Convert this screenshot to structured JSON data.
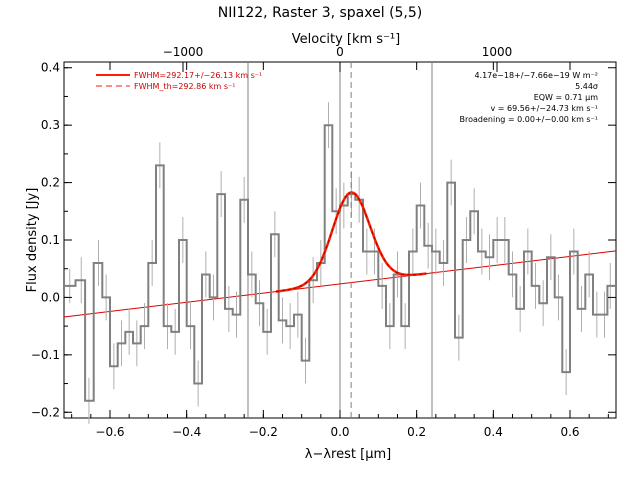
{
  "chart_data": {
    "type": "line",
    "title": "NII122, Raster 3, spaxel (5,5)",
    "xlabel": "λ−λrest [μm]",
    "ylabel": "Flux density [Jy]",
    "top_axis_label": "Velocity [km s⁻¹]",
    "xlim": [
      -0.72,
      0.72
    ],
    "ylim": [
      -0.21,
      0.41
    ],
    "x_ticks": [
      -0.6,
      -0.4,
      -0.2,
      0.0,
      0.2,
      0.4,
      0.6
    ],
    "x_tick_labels": [
      "−0.6",
      "−0.4",
      "−0.2",
      "0.0",
      "0.2",
      "0.4",
      "0.6"
    ],
    "y_ticks": [
      -0.2,
      -0.1,
      0.0,
      0.1,
      0.2,
      0.3,
      0.4
    ],
    "y_tick_labels": [
      "−0.2",
      "−0.1",
      "0.0",
      "0.1",
      "0.2",
      "0.3",
      "0.4"
    ],
    "top_ticks": [
      -1000,
      0,
      1000
    ],
    "top_tick_labels": [
      "−1000",
      "0",
      "1000"
    ],
    "top_tick_positions_um": [
      -0.4096,
      0.0,
      0.4096
    ],
    "grid": false,
    "legend_position": "top-left",
    "vertical_lines_um": [
      -0.24,
      0.0,
      0.24
    ],
    "line_center_um": 0.029,
    "colors": {
      "spectrum": "#808080",
      "fit": "#ff1e00",
      "continuum": "#dd0000",
      "axes": "#000000"
    },
    "series": [
      {
        "name": "spectrum",
        "x": [
          -0.705,
          -0.675,
          -0.655,
          -0.63,
          -0.61,
          -0.59,
          -0.57,
          -0.55,
          -0.53,
          -0.51,
          -0.49,
          -0.47,
          -0.45,
          -0.43,
          -0.41,
          -0.39,
          -0.37,
          -0.35,
          -0.33,
          -0.31,
          -0.29,
          -0.27,
          -0.25,
          -0.23,
          -0.21,
          -0.19,
          -0.17,
          -0.15,
          -0.13,
          -0.11,
          -0.09,
          -0.07,
          -0.05,
          -0.03,
          -0.01,
          0.01,
          0.03,
          0.05,
          0.07,
          0.09,
          0.11,
          0.13,
          0.15,
          0.17,
          0.19,
          0.21,
          0.23,
          0.25,
          0.27,
          0.29,
          0.31,
          0.33,
          0.35,
          0.37,
          0.39,
          0.41,
          0.43,
          0.45,
          0.47,
          0.49,
          0.51,
          0.53,
          0.55,
          0.57,
          0.59,
          0.61,
          0.63,
          0.65,
          0.67,
          0.69,
          0.705
        ],
        "y": [
          0.02,
          0.03,
          -0.18,
          0.06,
          0.0,
          -0.12,
          -0.08,
          -0.06,
          -0.08,
          -0.05,
          0.06,
          0.23,
          -0.05,
          -0.06,
          0.1,
          -0.05,
          -0.15,
          0.04,
          0.0,
          0.18,
          -0.02,
          -0.03,
          0.17,
          0.04,
          -0.01,
          -0.06,
          0.11,
          -0.04,
          -0.05,
          -0.03,
          -0.11,
          0.03,
          0.06,
          0.3,
          0.15,
          0.16,
          0.18,
          0.17,
          0.08,
          0.08,
          0.02,
          -0.05,
          0.04,
          -0.05,
          0.08,
          0.16,
          0.09,
          0.08,
          0.06,
          0.2,
          -0.07,
          0.1,
          0.15,
          0.08,
          0.07,
          0.1,
          0.1,
          0.04,
          -0.02,
          0.08,
          0.02,
          -0.01,
          0.07,
          0.0,
          -0.13,
          0.08,
          -0.02,
          0.04,
          -0.03,
          -0.03,
          0.02
        ],
        "errors": [
          0.03,
          0.04,
          0.04,
          0.04,
          0.04,
          0.04,
          0.04,
          0.04,
          0.04,
          0.04,
          0.04,
          0.04,
          0.04,
          0.04,
          0.04,
          0.04,
          0.04,
          0.04,
          0.04,
          0.04,
          0.04,
          0.04,
          0.04,
          0.04,
          0.04,
          0.04,
          0.04,
          0.04,
          0.04,
          0.04,
          0.04,
          0.04,
          0.04,
          0.04,
          0.04,
          0.04,
          0.04,
          0.04,
          0.04,
          0.04,
          0.04,
          0.04,
          0.04,
          0.04,
          0.04,
          0.04,
          0.04,
          0.04,
          0.04,
          0.04,
          0.04,
          0.04,
          0.04,
          0.04,
          0.04,
          0.04,
          0.04,
          0.04,
          0.04,
          0.04,
          0.04,
          0.04,
          0.04,
          0.04,
          0.04,
          0.04,
          0.04,
          0.04,
          0.04,
          0.04,
          0.04
        ]
      },
      {
        "name": "continuum",
        "x": [
          -0.72,
          0.72
        ],
        "y": [
          -0.034,
          0.081
        ]
      },
      {
        "name": "gaussian_fit",
        "center_um": 0.029,
        "sigma_um": 0.049,
        "amplitude_jy": 0.157
      }
    ],
    "legend": [
      {
        "label": "FWHM=292.17+/−26.13 km s⁻¹",
        "style": "solid"
      },
      {
        "label": "FWHM_th=292.86 km s⁻¹",
        "style": "dashed"
      }
    ],
    "annotations": [
      "4.17e−18+/−7.66e−19 W m⁻²",
      "5.44σ",
      "EQW = 0.71 μm",
      "v = 69.56+/−24.73 km s⁻¹",
      "Broadening = 0.00+/−0.00 km s⁻¹"
    ]
  }
}
